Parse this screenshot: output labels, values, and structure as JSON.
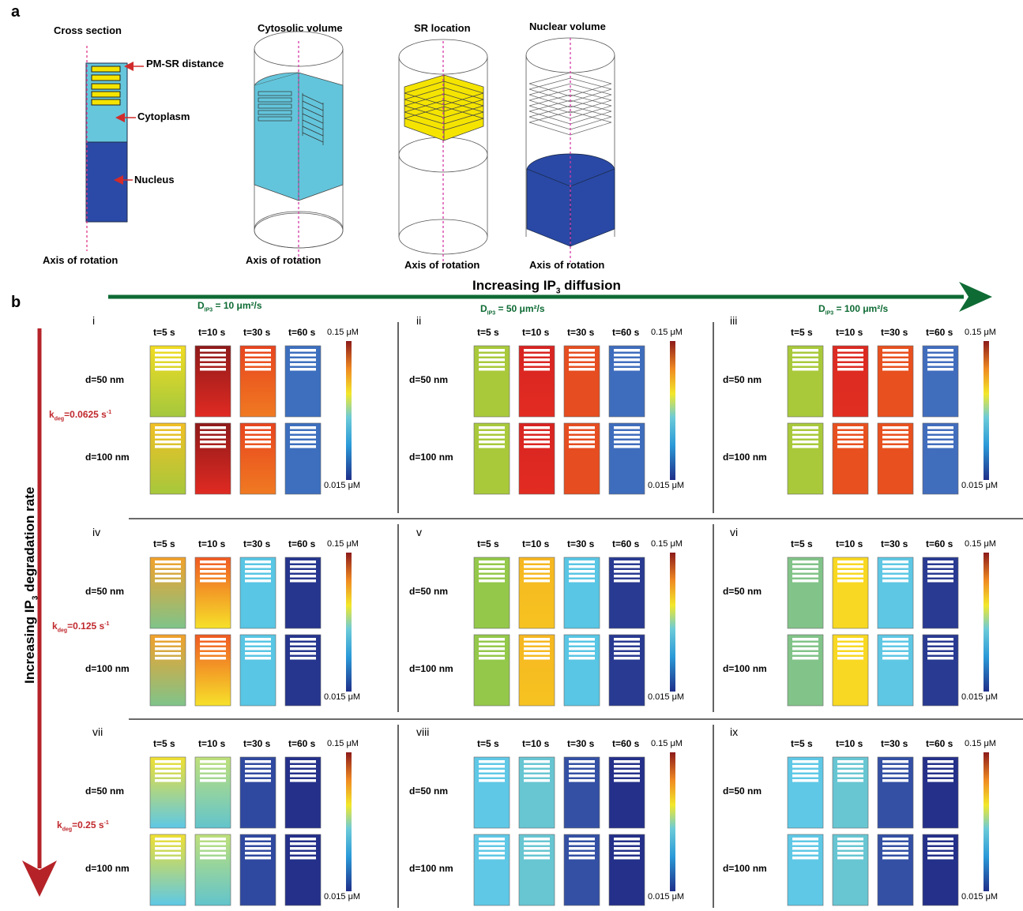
{
  "panel_a": {
    "letter": "a",
    "titles": [
      "Cross section",
      "Cytosolic volume",
      "SR location",
      "Nuclear volume"
    ],
    "labels": {
      "pm_sr": "PM-SR distance",
      "cytoplasm": "Cytoplasm",
      "nucleus": "Nucleus"
    },
    "axis_label": "Axis of rotation"
  },
  "panel_b": {
    "letter": "b",
    "x_arrow_label": "Increasing  IP",
    "x_arrow_sub": "3",
    "x_arrow_suffix": " diffusion",
    "y_arrow_label": "Increasing  IP",
    "y_arrow_sub": "3",
    "y_arrow_suffix": " degradation rate",
    "diffusion": [
      {
        "pre": "D",
        "sub": "IP3",
        "post": " = 10 μm²/s"
      },
      {
        "pre": "D",
        "sub": "IP3",
        "post": " = 50 μm²/s"
      },
      {
        "pre": "D",
        "sub": "IP3",
        "post": " = 100 μm²/s"
      }
    ],
    "degradation": [
      {
        "pre": "k",
        "sub": "deg",
        "mid": "=0.0625 s",
        "sup": "-1"
      },
      {
        "pre": "k",
        "sub": "deg",
        "mid": "=0.125 s",
        "sup": "-1"
      },
      {
        "pre": "k",
        "sub": "deg",
        "mid": "=0.25 s",
        "sup": "-1"
      }
    ],
    "times": [
      "t=5 s",
      "t=10 s",
      "t=30 s",
      "t=60 s"
    ],
    "distances": [
      "d=50 nm",
      "d=100 nm"
    ],
    "colorbar": {
      "max": "0.15 μM",
      "min": "0.015 μM"
    },
    "panels": [
      {
        "id": "i",
        "rows": [
          [
            [
              "#f1dc22",
              "#a4c83e"
            ],
            [
              "#8f1a1a",
              "#e02a22"
            ],
            [
              "#e8441e",
              "#f07a22"
            ],
            [
              "#3d6fbe",
              "#3d6fbe"
            ]
          ],
          [
            [
              "#f1c025",
              "#a6c83c"
            ],
            [
              "#8f1a1a",
              "#e02a22"
            ],
            [
              "#e8441e",
              "#f07a22"
            ],
            [
              "#3d6fbe",
              "#3d6fbe"
            ]
          ]
        ]
      },
      {
        "id": "ii",
        "rows": [
          [
            [
              "#a9c93b",
              "#a9c93b"
            ],
            [
              "#d82421",
              "#e22c22"
            ],
            [
              "#e64d20",
              "#e64d20"
            ],
            [
              "#3f6dbd",
              "#3f6dbd"
            ]
          ],
          [
            [
              "#a9c93b",
              "#a9c93b"
            ],
            [
              "#d82421",
              "#e22c22"
            ],
            [
              "#e64d20",
              "#e64d20"
            ],
            [
              "#3f6dbd",
              "#3f6dbd"
            ]
          ]
        ]
      },
      {
        "id": "iii",
        "rows": [
          [
            [
              "#a9c93b",
              "#a9c93b"
            ],
            [
              "#dc2a22",
              "#e12e22"
            ],
            [
              "#e8501f",
              "#e8501f"
            ],
            [
              "#416dbd",
              "#416dbd"
            ]
          ],
          [
            [
              "#a9c93b",
              "#a9c93b"
            ],
            [
              "#e8501f",
              "#e8501f"
            ],
            [
              "#e8501f",
              "#e8501f"
            ],
            [
              "#416dbd",
              "#416dbd"
            ]
          ]
        ]
      },
      {
        "id": "iv",
        "rows": [
          [
            [
              "#f2a12a",
              "#7fc48a"
            ],
            [
              "#f05a22",
              "#f6e12a"
            ],
            [
              "#58c6e4",
              "#58c6e4"
            ],
            [
              "#26368e",
              "#26368e"
            ]
          ],
          [
            [
              "#f2a12a",
              "#7fc48a"
            ],
            [
              "#f05a22",
              "#f6e12a"
            ],
            [
              "#58c6e4",
              "#58c6e4"
            ],
            [
              "#26368e",
              "#26368e"
            ]
          ]
        ]
      },
      {
        "id": "v",
        "rows": [
          [
            [
              "#94c84a",
              "#94c84a"
            ],
            [
              "#f6b721",
              "#f6c321"
            ],
            [
              "#58c6e4",
              "#58c6e4"
            ],
            [
              "#293a92",
              "#293a92"
            ]
          ],
          [
            [
              "#94c84a",
              "#94c84a"
            ],
            [
              "#f6b721",
              "#f6c321"
            ],
            [
              "#58c6e4",
              "#58c6e4"
            ],
            [
              "#293a92",
              "#293a92"
            ]
          ]
        ]
      },
      {
        "id": "vi",
        "rows": [
          [
            [
              "#82c389",
              "#82c389"
            ],
            [
              "#f8d822",
              "#f8d822"
            ],
            [
              "#5ec7e4",
              "#5ec7e4"
            ],
            [
              "#293a92",
              "#293a92"
            ]
          ],
          [
            [
              "#82c389",
              "#82c389"
            ],
            [
              "#f8d822",
              "#f8d822"
            ],
            [
              "#5ec7e4",
              "#5ec7e4"
            ],
            [
              "#293a92",
              "#293a92"
            ]
          ]
        ]
      },
      {
        "id": "vii",
        "rows": [
          [
            [
              "#f0e032",
              "#5ec8e6"
            ],
            [
              "#bfe07a",
              "#62c4cc"
            ],
            [
              "#3049a0",
              "#3049a0"
            ],
            [
              "#24308a",
              "#24308a"
            ]
          ],
          [
            [
              "#f0e032",
              "#5ec8e6"
            ],
            [
              "#bfe07a",
              "#62c4cc"
            ],
            [
              "#3049a0",
              "#3049a0"
            ],
            [
              "#24308a",
              "#24308a"
            ]
          ]
        ]
      },
      {
        "id": "viii",
        "rows": [
          [
            [
              "#5fc8e6",
              "#5fc8e6"
            ],
            [
              "#67c6d2",
              "#67c6d2"
            ],
            [
              "#3350a4",
              "#3350a4"
            ],
            [
              "#24308a",
              "#24308a"
            ]
          ],
          [
            [
              "#5fc8e6",
              "#5fc8e6"
            ],
            [
              "#67c6d2",
              "#67c6d2"
            ],
            [
              "#3350a4",
              "#3350a4"
            ],
            [
              "#24308a",
              "#24308a"
            ]
          ]
        ]
      },
      {
        "id": "ix",
        "rows": [
          [
            [
              "#5fc8e6",
              "#5fc8e6"
            ],
            [
              "#67c6d2",
              "#67c6d2"
            ],
            [
              "#3350a4",
              "#3350a4"
            ],
            [
              "#24308a",
              "#24308a"
            ]
          ],
          [
            [
              "#5fc8e6",
              "#5fc8e6"
            ],
            [
              "#67c6d2",
              "#67c6d2"
            ],
            [
              "#3350a4",
              "#3350a4"
            ],
            [
              "#24308a",
              "#24308a"
            ]
          ]
        ]
      }
    ]
  }
}
